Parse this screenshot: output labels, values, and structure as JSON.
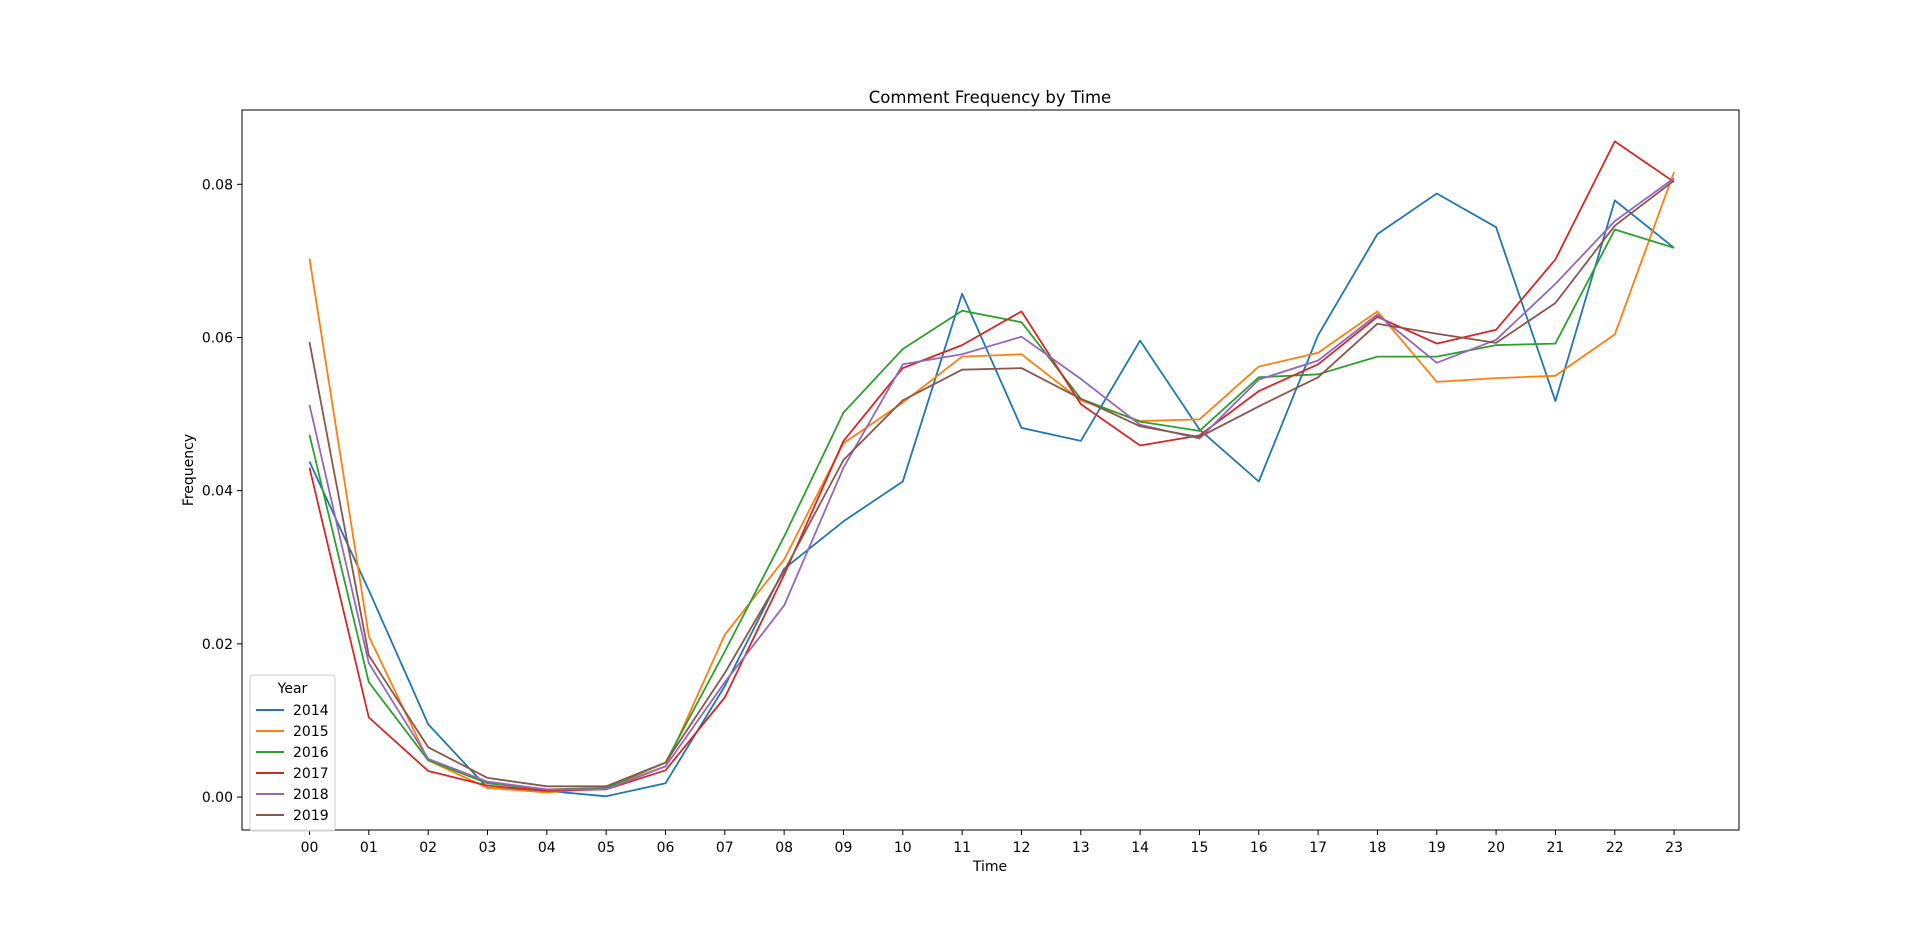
{
  "chart_data": {
    "type": "line",
    "title": "Comment Frequency by Time",
    "xlabel": "Time",
    "ylabel": "Frequency",
    "categories": [
      "00",
      "01",
      "02",
      "03",
      "04",
      "05",
      "06",
      "07",
      "08",
      "09",
      "10",
      "11",
      "12",
      "13",
      "14",
      "15",
      "16",
      "17",
      "18",
      "19",
      "20",
      "21",
      "22",
      "23"
    ],
    "yticks": [
      "0.00",
      "0.02",
      "0.04",
      "0.06",
      "0.08"
    ],
    "ylim": [
      -0.0043,
      0.0897
    ],
    "grid": false,
    "legend": {
      "title": "Year",
      "placement": "lower-left"
    },
    "series": [
      {
        "name": "2014",
        "color": "#1f77b4",
        "values": [
          0.0438,
          0.027,
          0.0095,
          0.0012,
          0.0008,
          0.0001,
          0.0018,
          0.0145,
          0.0298,
          0.036,
          0.0412,
          0.0657,
          0.0482,
          0.0465,
          0.0596,
          0.048,
          0.0412,
          0.0603,
          0.0735,
          0.0788,
          0.0744,
          0.0517,
          0.0779,
          0.0717
        ]
      },
      {
        "name": "2015",
        "color": "#ff7f0e",
        "values": [
          0.0703,
          0.021,
          0.0048,
          0.0012,
          0.0006,
          0.0012,
          0.004,
          0.0212,
          0.031,
          0.0462,
          0.0515,
          0.0575,
          0.0578,
          0.0518,
          0.0491,
          0.0493,
          0.0562,
          0.058,
          0.0634,
          0.0542,
          0.0547,
          0.055,
          0.0604,
          0.0816
        ]
      },
      {
        "name": "2016",
        "color": "#2ca02c",
        "values": [
          0.0473,
          0.015,
          0.0048,
          0.0018,
          0.001,
          0.0012,
          0.0045,
          0.019,
          0.034,
          0.0502,
          0.0585,
          0.0635,
          0.062,
          0.052,
          0.049,
          0.0478,
          0.0548,
          0.0552,
          0.0575,
          0.0575,
          0.059,
          0.0592,
          0.0741,
          0.0717
        ]
      },
      {
        "name": "2017",
        "color": "#d62728",
        "values": [
          0.043,
          0.0104,
          0.0034,
          0.0015,
          0.0008,
          0.001,
          0.0035,
          0.013,
          0.029,
          0.0465,
          0.056,
          0.059,
          0.0634,
          0.0513,
          0.0459,
          0.0472,
          0.053,
          0.0565,
          0.0627,
          0.0592,
          0.061,
          0.0702,
          0.0856,
          0.0803
        ]
      },
      {
        "name": "2018",
        "color": "#9467bd",
        "values": [
          0.0512,
          0.0175,
          0.005,
          0.002,
          0.001,
          0.001,
          0.004,
          0.015,
          0.025,
          0.043,
          0.0565,
          0.0578,
          0.0601,
          0.0546,
          0.0486,
          0.0468,
          0.0545,
          0.057,
          0.063,
          0.0567,
          0.0597,
          0.067,
          0.0752,
          0.0808
        ]
      },
      {
        "name": "2019",
        "color": "#8c564b",
        "values": [
          0.0594,
          0.0185,
          0.0065,
          0.0025,
          0.0014,
          0.0014,
          0.0045,
          0.0162,
          0.0295,
          0.044,
          0.0518,
          0.0558,
          0.056,
          0.052,
          0.0484,
          0.047,
          0.051,
          0.0548,
          0.0618,
          0.0605,
          0.0593,
          0.0645,
          0.0746,
          0.0805
        ]
      }
    ]
  }
}
